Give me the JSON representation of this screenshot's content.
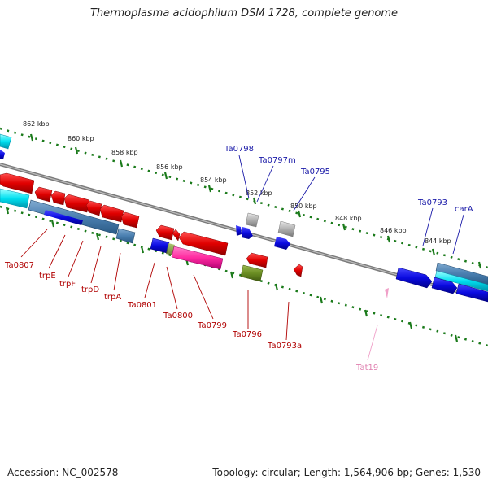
{
  "title": "Thermoplasma acidophilum DSM 1728, complete genome",
  "footer": {
    "accession": "Accession: NC_002578",
    "summary": "Topology: circular; Length: 1,564,906 bp; Genes: 1,530"
  },
  "kbp_labels": [
    "862 kbp",
    "860 kbp",
    "858 kbp",
    "856 kbp",
    "854 kbp",
    "852 kbp",
    "850 kbp",
    "848 kbp",
    "846 kbp",
    "844 kbp"
  ],
  "forward_genes": [
    "Ta0798",
    "Ta0797m",
    "Ta0795",
    "Ta0793",
    "carA"
  ],
  "reverse_genes": [
    "Ta0807",
    "trpE",
    "trpF",
    "trpD",
    "trpA",
    "Ta0801",
    "Ta0800",
    "Ta0799",
    "Ta0796",
    "Ta0793a"
  ],
  "rna_genes": [
    "Tat19"
  ],
  "colors": {
    "forward_cds": "#1010e0",
    "reverse_cds": "#e01010",
    "operon": "#4a7fb0",
    "cyan": "#00e0f0",
    "pink": "#ff2aa0",
    "olive": "#6b8e23",
    "grey": "#b0b0b0",
    "tick": "#1a7a1a",
    "backbone": "#808080"
  }
}
